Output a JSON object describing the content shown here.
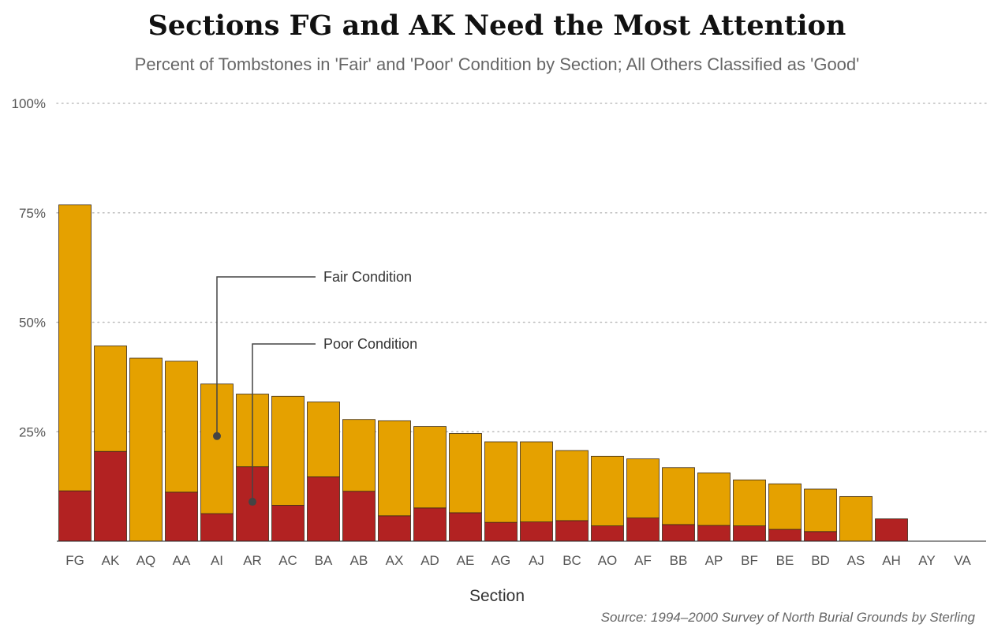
{
  "chart_data": {
    "type": "bar",
    "stacked": true,
    "title": "Sections FG and AK Need the Most Attention",
    "subtitle": "Percent of Tombstones in 'Fair' and 'Poor' Condition by Section; All Others Classified as 'Good'",
    "xlabel": "Section",
    "ylabel": "",
    "ylim": [
      0,
      100
    ],
    "yticks": [
      {
        "value": 25,
        "label": "25%"
      },
      {
        "value": 50,
        "label": "50%"
      },
      {
        "value": 75,
        "label": "75%"
      },
      {
        "value": 100,
        "label": "100%"
      }
    ],
    "grid": "horizontal dotted",
    "categories": [
      "FG",
      "AK",
      "AQ",
      "AA",
      "AI",
      "AR",
      "AC",
      "BA",
      "AB",
      "AX",
      "AD",
      "AE",
      "AG",
      "AJ",
      "BC",
      "AO",
      "AF",
      "BB",
      "AP",
      "BF",
      "BE",
      "BD",
      "AS",
      "AH",
      "AY",
      "VA"
    ],
    "series": [
      {
        "name": "Poor Condition",
        "color": "#b22222",
        "values": [
          11.5,
          20.5,
          0,
          11.2,
          6.3,
          17,
          8.2,
          14.7,
          11.4,
          5.8,
          7.6,
          6.5,
          4.3,
          4.4,
          4.7,
          3.5,
          5.3,
          3.8,
          3.6,
          3.5,
          2.7,
          2.2,
          0,
          5.1,
          0,
          0
        ]
      },
      {
        "name": "Fair Condition",
        "color": "#e5a100",
        "values": [
          65.3,
          24.1,
          41.8,
          29.9,
          29.6,
          16.6,
          24.9,
          17.1,
          16.4,
          21.7,
          18.6,
          18.1,
          18.4,
          18.3,
          16.0,
          15.9,
          13.5,
          13.0,
          12.0,
          10.5,
          10.4,
          9.7,
          10.2,
          0,
          0,
          0
        ]
      }
    ],
    "annotations": [
      {
        "label": "Fair Condition",
        "category": "AI",
        "value": 24
      },
      {
        "label": "Poor Condition",
        "category": "AR",
        "value": 9
      }
    ],
    "source": "Source: 1994–2000 Survey of North Burial Grounds by Sterling"
  }
}
